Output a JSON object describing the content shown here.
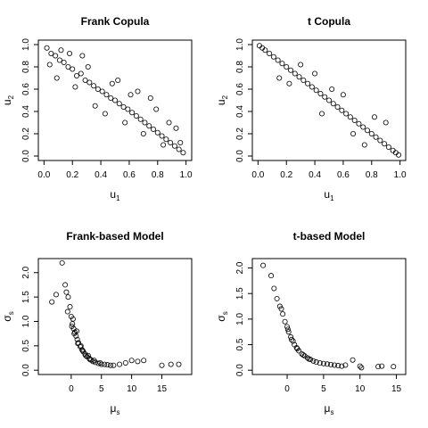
{
  "chart_data": [
    {
      "type": "scatter",
      "title": "Frank Copula",
      "xlabel": "u",
      "xlabel_sub": "1",
      "ylabel": "u",
      "ylabel_sub": "2",
      "xlim": [
        0,
        1
      ],
      "ylim": [
        0,
        1
      ],
      "xticks": [
        "0.0",
        "0.2",
        "0.4",
        "0.6",
        "0.8",
        "1.0"
      ],
      "yticks": [
        "0.0",
        "0.2",
        "0.4",
        "0.6",
        "0.8",
        "1.0"
      ],
      "x": [
        0.02,
        0.05,
        0.08,
        0.11,
        0.14,
        0.17,
        0.2,
        0.23,
        0.26,
        0.29,
        0.32,
        0.35,
        0.38,
        0.41,
        0.44,
        0.47,
        0.5,
        0.53,
        0.56,
        0.59,
        0.62,
        0.65,
        0.68,
        0.71,
        0.74,
        0.77,
        0.8,
        0.83,
        0.86,
        0.89,
        0.92,
        0.95,
        0.98,
        0.04,
        0.12,
        0.22,
        0.31,
        0.43,
        0.52,
        0.61,
        0.7,
        0.79,
        0.88,
        0.96,
        0.09,
        0.18,
        0.36,
        0.66,
        0.84,
        0.93,
        0.27,
        0.48,
        0.57,
        0.75
      ],
      "y": [
        0.97,
        0.92,
        0.9,
        0.86,
        0.84,
        0.8,
        0.78,
        0.72,
        0.74,
        0.68,
        0.66,
        0.63,
        0.6,
        0.58,
        0.55,
        0.52,
        0.5,
        0.47,
        0.44,
        0.42,
        0.39,
        0.36,
        0.33,
        0.3,
        0.27,
        0.24,
        0.21,
        0.18,
        0.15,
        0.12,
        0.09,
        0.06,
        0.03,
        0.82,
        0.95,
        0.62,
        0.8,
        0.38,
        0.68,
        0.55,
        0.2,
        0.42,
        0.3,
        0.12,
        0.7,
        0.92,
        0.45,
        0.58,
        0.1,
        0.25,
        0.9,
        0.65,
        0.3,
        0.52
      ]
    },
    {
      "type": "scatter",
      "title": "t Copula",
      "xlabel": "u",
      "xlabel_sub": "1",
      "ylabel": "u",
      "ylabel_sub": "2",
      "xlim": [
        0,
        1
      ],
      "ylim": [
        0,
        1
      ],
      "xticks": [
        "0.0",
        "0.2",
        "0.4",
        "0.6",
        "0.8",
        "1.0"
      ],
      "yticks": [
        "0.0",
        "0.2",
        "0.4",
        "0.6",
        "0.8",
        "1.0"
      ],
      "x": [
        0.01,
        0.03,
        0.05,
        0.08,
        0.11,
        0.14,
        0.17,
        0.2,
        0.23,
        0.26,
        0.29,
        0.32,
        0.35,
        0.38,
        0.41,
        0.44,
        0.47,
        0.5,
        0.53,
        0.56,
        0.59,
        0.62,
        0.65,
        0.68,
        0.71,
        0.74,
        0.77,
        0.8,
        0.83,
        0.86,
        0.89,
        0.92,
        0.95,
        0.97,
        0.99,
        0.15,
        0.3,
        0.45,
        0.6,
        0.75,
        0.9,
        0.22,
        0.52,
        0.67,
        0.82,
        0.4
      ],
      "y": [
        0.99,
        0.97,
        0.95,
        0.92,
        0.89,
        0.86,
        0.83,
        0.8,
        0.77,
        0.74,
        0.71,
        0.68,
        0.65,
        0.62,
        0.59,
        0.56,
        0.53,
        0.5,
        0.47,
        0.44,
        0.41,
        0.38,
        0.35,
        0.32,
        0.29,
        0.26,
        0.23,
        0.2,
        0.17,
        0.14,
        0.11,
        0.08,
        0.05,
        0.03,
        0.01,
        0.7,
        0.82,
        0.38,
        0.55,
        0.1,
        0.3,
        0.65,
        0.6,
        0.2,
        0.35,
        0.74
      ]
    },
    {
      "type": "scatter",
      "title": "Frank-based Model",
      "xlabel": "μ",
      "xlabel_sub": "s",
      "ylabel": "σ",
      "ylabel_sub": "s",
      "xlim": [
        -4.5,
        19
      ],
      "ylim": [
        0,
        2.2
      ],
      "xticks": [
        "0",
        "5",
        "10",
        "15"
      ],
      "xtick_values": [
        0,
        5,
        10,
        15
      ],
      "yticks": [
        "0.0",
        "0.5",
        "1.0",
        "1.5",
        "2.0"
      ],
      "ytick_values": [
        0,
        0.5,
        1,
        1.5,
        2
      ],
      "x": [
        -1.5,
        -1,
        -0.5,
        -0.2,
        0,
        0.2,
        0.4,
        0.6,
        0.8,
        1,
        1.2,
        1.5,
        1.8,
        2,
        2.3,
        2.6,
        3,
        3.3,
        3.6,
        4,
        4.5,
        5,
        5.5,
        6,
        6.5,
        7,
        8,
        9,
        10,
        11,
        12,
        15,
        16.5,
        17.8,
        -0.8,
        0.3,
        0.9,
        1.6,
        2.4,
        3.1,
        -3.2,
        -2.5,
        -0.6,
        0.1,
        0.5,
        1.1,
        1.9,
        2.8,
        3.8,
        4.8
      ],
      "y": [
        2.2,
        1.75,
        1.5,
        1.3,
        1.1,
        0.95,
        0.85,
        0.78,
        0.7,
        0.63,
        0.56,
        0.48,
        0.42,
        0.38,
        0.33,
        0.28,
        0.24,
        0.21,
        0.18,
        0.16,
        0.14,
        0.12,
        0.12,
        0.11,
        0.1,
        0.1,
        0.12,
        0.15,
        0.2,
        0.18,
        0.2,
        0.1,
        0.12,
        0.12,
        1.6,
        1.05,
        0.8,
        0.5,
        0.3,
        0.22,
        1.4,
        1.55,
        1.2,
        0.9,
        0.75,
        0.55,
        0.4,
        0.3,
        0.2,
        0.15
      ]
    },
    {
      "type": "scatter",
      "title": "t-based Model",
      "xlabel": "μ",
      "xlabel_sub": "s",
      "ylabel": "σ",
      "ylabel_sub": "s",
      "xlim": [
        -4,
        15.5
      ],
      "ylim": [
        0,
        2.1
      ],
      "xticks": [
        "0",
        "5",
        "10",
        "15"
      ],
      "xtick_values": [
        0,
        5,
        10,
        15
      ],
      "yticks": [
        "0.0",
        "0.5",
        "1.0",
        "1.5",
        "2.0"
      ],
      "ytick_values": [
        0,
        0.5,
        1,
        1.5,
        2
      ],
      "x": [
        -3.3,
        -2.2,
        -1.8,
        -1.4,
        -1,
        -0.6,
        -0.3,
        0,
        0.2,
        0.5,
        0.8,
        1,
        1.3,
        1.6,
        2,
        2.4,
        2.8,
        3.2,
        3.6,
        4,
        4.5,
        5,
        5.5,
        6,
        6.5,
        7,
        7.5,
        8,
        9,
        10,
        10.2,
        12.5,
        13,
        14.6,
        -0.8,
        0.1,
        0.6,
        1.4,
        2.2,
        3
      ],
      "y": [
        2.05,
        1.85,
        1.6,
        1.4,
        1.25,
        1.1,
        0.95,
        0.85,
        0.75,
        0.65,
        0.57,
        0.5,
        0.44,
        0.38,
        0.32,
        0.28,
        0.24,
        0.21,
        0.18,
        0.16,
        0.14,
        0.13,
        0.12,
        0.11,
        0.1,
        0.09,
        0.08,
        0.1,
        0.2,
        0.08,
        0.05,
        0.07,
        0.08,
        0.07,
        1.2,
        0.8,
        0.6,
        0.42,
        0.3,
        0.22
      ]
    }
  ]
}
